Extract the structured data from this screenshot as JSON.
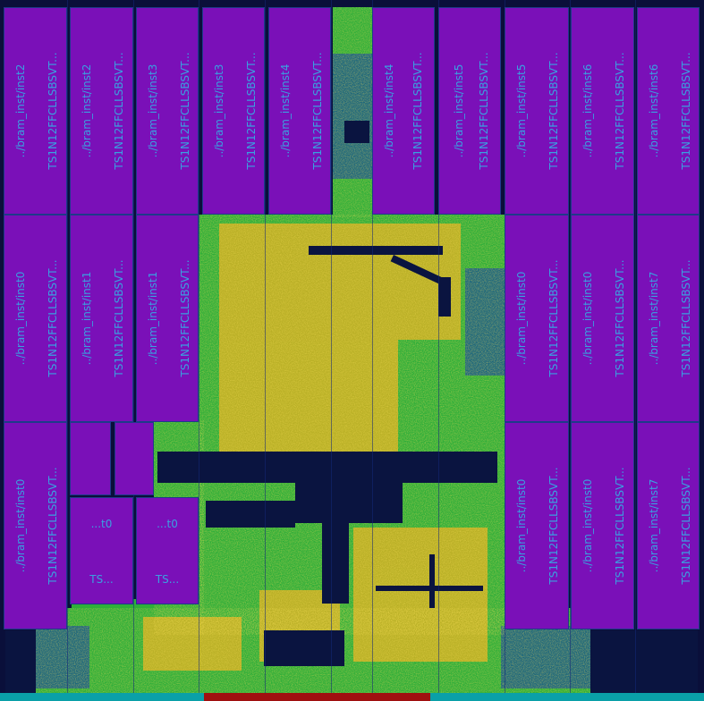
{
  "macros": [
    {
      "id": "m-top-1",
      "label_a": "../bram_inst/inst2",
      "label_b": "TS1N12FFCLLSBSVT..."
    },
    {
      "id": "m-top-2",
      "label_a": "../bram_inst/inst2",
      "label_b": "TS1N12FFCLLSBSVT..."
    },
    {
      "id": "m-top-3",
      "label_a": "../bram_inst/inst3",
      "label_b": "TS1N12FFCLLSBSVT..."
    },
    {
      "id": "m-top-4",
      "label_a": "../bram_inst/inst3",
      "label_b": "TS1N12FFCLLSBSVT..."
    },
    {
      "id": "m-top-5",
      "label_a": "../bram_inst/inst4",
      "label_b": "TS1N12FFCLLSBSVT..."
    },
    {
      "id": "m-top-6",
      "label_a": "../bram_inst/inst4",
      "label_b": "TS1N12FFCLLSBSVT..."
    },
    {
      "id": "m-top-7",
      "label_a": "../bram_inst/inst5",
      "label_b": "TS1N12FFCLLSBSVT..."
    },
    {
      "id": "m-top-8",
      "label_a": "../bram_inst/inst5",
      "label_b": "TS1N12FFCLLSBSVT..."
    },
    {
      "id": "m-top-9",
      "label_a": "../bram_inst/inst6",
      "label_b": "TS1N12FFCLLSBSVT..."
    },
    {
      "id": "m-top-10",
      "label_a": "../bram_inst/inst6",
      "label_b": "TS1N12FFCLLSBSVT..."
    },
    {
      "id": "m-mid-1",
      "label_a": "../bram_inst/inst0",
      "label_b": "TS1N12FFCLLSBSVT..."
    },
    {
      "id": "m-mid-2",
      "label_a": "../bram_inst/inst1",
      "label_b": "TS1N12FFCLLSBSVT..."
    },
    {
      "id": "m-mid-3",
      "label_a": "../bram_inst/inst1",
      "label_b": "TS1N12FFCLLSBSVT..."
    },
    {
      "id": "m-mid-4",
      "label_a": "../bram_inst/inst0",
      "label_b": "TS1N12FFCLLSBSVT..."
    },
    {
      "id": "m-mid-5",
      "label_a": "../bram_inst/inst0",
      "label_b": "TS1N12FFCLLSBSVT..."
    },
    {
      "id": "m-mid-6",
      "label_a": "../bram_inst/inst7",
      "label_b": "TS1N12FFCLLSBSVT..."
    },
    {
      "id": "m-bot-1",
      "label_a": "../bram_inst/inst0",
      "label_b": "TS1N12FFCLLSBSVT..."
    },
    {
      "id": "m-bot-4",
      "label_a": "../bram_inst/inst0",
      "label_b": "TS1N12FFCLLSBSVT..."
    },
    {
      "id": "m-bot-5",
      "label_a": "../bram_inst/inst0",
      "label_b": "TS1N12FFCLLSBSVT..."
    },
    {
      "id": "m-bot-6",
      "label_a": "../bram_inst/inst7",
      "label_b": "TS1N12FFCLLSBSVT..."
    }
  ],
  "small_macros": [
    {
      "id": "s-1",
      "label_a": "...t0",
      "label_b": "TS..."
    },
    {
      "id": "s-2",
      "label_a": "...t0",
      "label_b": "TS..."
    }
  ],
  "colors": {
    "macro": "#7a10b8",
    "text": "#3aa0e0",
    "dense_high": "#e8b020",
    "dense_mid": "#2fae3a",
    "dense_low": "#1a6a8a",
    "background": "#0a0f3a"
  }
}
